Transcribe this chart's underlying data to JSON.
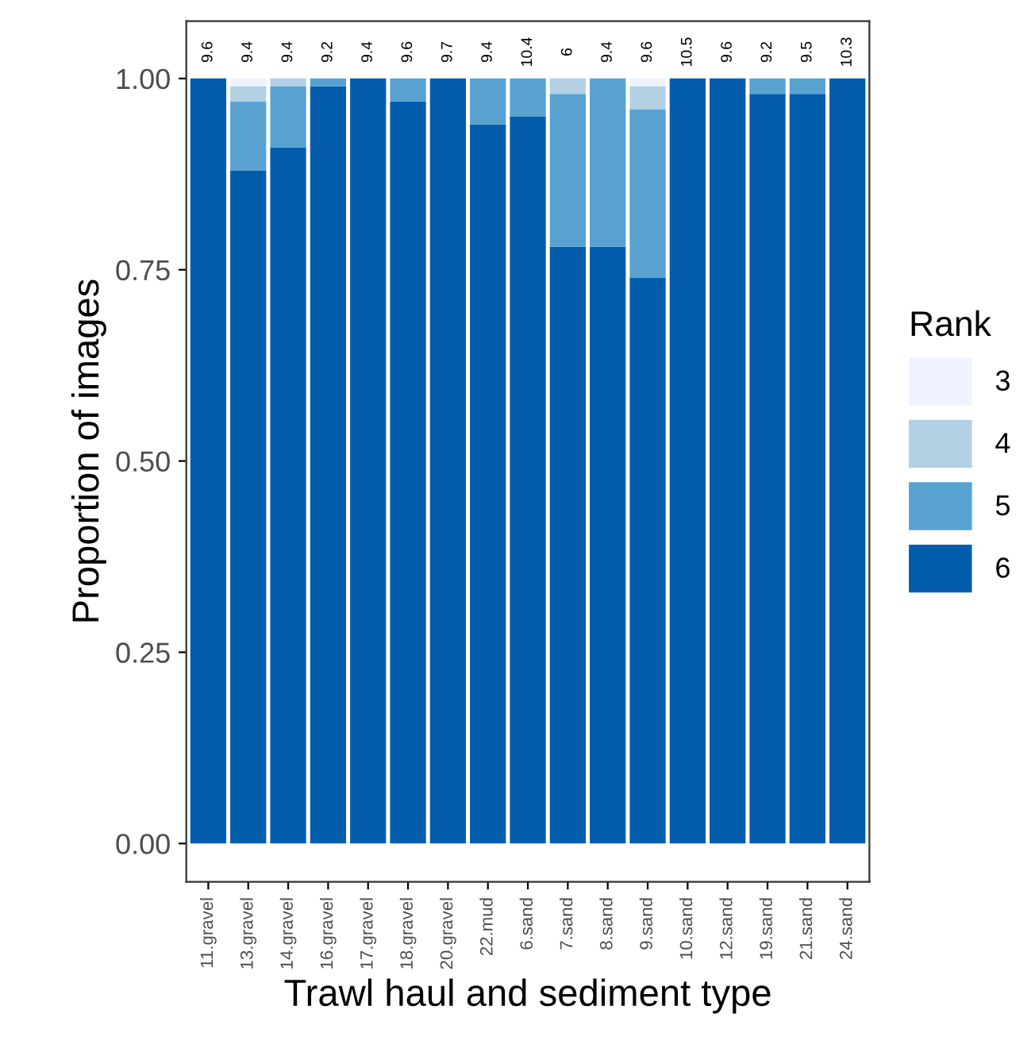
{
  "chart_data": {
    "type": "bar",
    "stacked": true,
    "xlabel": "Trawl haul and sediment type",
    "ylabel": "Proportion of images",
    "legend_title": "Rank",
    "legend": "right",
    "grid": false,
    "categories": [
      "11.gravel",
      "13.gravel",
      "14.gravel",
      "16.gravel",
      "17.gravel",
      "18.gravel",
      "20.gravel",
      "22.mud",
      "6.sand",
      "7.sand",
      "8.sand",
      "9.sand",
      "10.sand",
      "12.sand",
      "19.sand",
      "21.sand",
      "24.sand"
    ],
    "ylim": [
      -0.05,
      1.075
    ],
    "yticks": [
      {
        "value": 0,
        "label": "0.00"
      },
      {
        "value": 0.25,
        "label": "0.25"
      },
      {
        "value": 0.5,
        "label": "0.50"
      },
      {
        "value": 0.75,
        "label": "0.75"
      },
      {
        "value": 1,
        "label": "1.00"
      }
    ],
    "series": [
      {
        "name": "6",
        "color": "#045cac",
        "values": [
          1,
          0.88,
          0.91,
          0.99,
          1,
          0.97,
          1,
          0.94,
          0.95,
          0.78,
          0.78,
          0.74,
          1,
          1,
          0.98,
          0.98,
          1
        ]
      },
      {
        "name": "5",
        "color": "#58a2d2",
        "values": [
          0,
          0.09,
          0.08,
          0.01,
          0,
          0.03,
          0,
          0.06,
          0.05,
          0.2,
          0.22,
          0.22,
          0,
          0,
          0.02,
          0.02,
          0
        ]
      },
      {
        "name": "4",
        "color": "#b4d0e4",
        "values": [
          0,
          0.02,
          0.01,
          0,
          0,
          0,
          0,
          0,
          0,
          0.02,
          0,
          0.03,
          0,
          0,
          0,
          0,
          0
        ]
      },
      {
        "name": "3",
        "color": "#eff3ff",
        "values": [
          0,
          0.01,
          0,
          0,
          0,
          0,
          0,
          0,
          0,
          0,
          0,
          0.01,
          0,
          0,
          0,
          0,
          0
        ]
      }
    ],
    "annotations": [
      "9.6",
      "9.4",
      "9.4",
      "9.2",
      "9.4",
      "9.6",
      "9.7",
      "9.4",
      "10.4",
      "6",
      "9.4",
      "9.6",
      "10.5",
      "9.6",
      "9.2",
      "9.5",
      "10.3"
    ]
  }
}
